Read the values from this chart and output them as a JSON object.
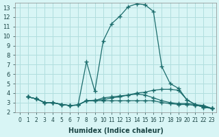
{
  "xlabel": "Humidex (Indice chaleur)",
  "ylabel": "",
  "bg_color": "#d8f5f5",
  "grid_color": "#b0dede",
  "line_color": "#1a6b6b",
  "marker": "+",
  "xlim": [
    -0.5,
    23.5
  ],
  "ylim": [
    2,
    13.5
  ],
  "xticks": [
    0,
    1,
    2,
    3,
    4,
    5,
    6,
    7,
    8,
    9,
    10,
    11,
    12,
    13,
    14,
    15,
    16,
    17,
    18,
    19,
    20,
    21,
    22,
    23
  ],
  "yticks": [
    2,
    3,
    4,
    5,
    6,
    7,
    8,
    9,
    10,
    11,
    12,
    13
  ],
  "series": [
    [
      3.6,
      3.4,
      3.0,
      3.0,
      2.8,
      2.7,
      2.75,
      7.3,
      4.2,
      9.5,
      11.3,
      12.1,
      13.1,
      13.4,
      13.3,
      12.6,
      6.8,
      5.0,
      4.5,
      3.3,
      2.8,
      2.5,
      2.4
    ],
    [
      3.6,
      3.4,
      3.0,
      3.0,
      2.8,
      2.7,
      2.75,
      3.2,
      3.25,
      3.3,
      3.5,
      3.6,
      3.8,
      4.0,
      4.1,
      4.3,
      4.4,
      4.4,
      4.3,
      3.3,
      2.8,
      2.5,
      2.4
    ],
    [
      3.6,
      3.4,
      3.0,
      3.0,
      2.8,
      2.7,
      2.75,
      3.2,
      3.2,
      3.2,
      3.2,
      3.2,
      3.2,
      3.2,
      3.2,
      3.2,
      3.0,
      2.9,
      2.8,
      2.8,
      2.7,
      2.6,
      2.4
    ],
    [
      3.6,
      3.4,
      3.0,
      3.0,
      2.8,
      2.7,
      2.75,
      3.2,
      3.2,
      3.5,
      3.6,
      3.7,
      3.8,
      3.9,
      3.8,
      3.5,
      3.2,
      3.0,
      2.9,
      2.9,
      2.8,
      2.7,
      2.4
    ]
  ],
  "x_start": 1
}
